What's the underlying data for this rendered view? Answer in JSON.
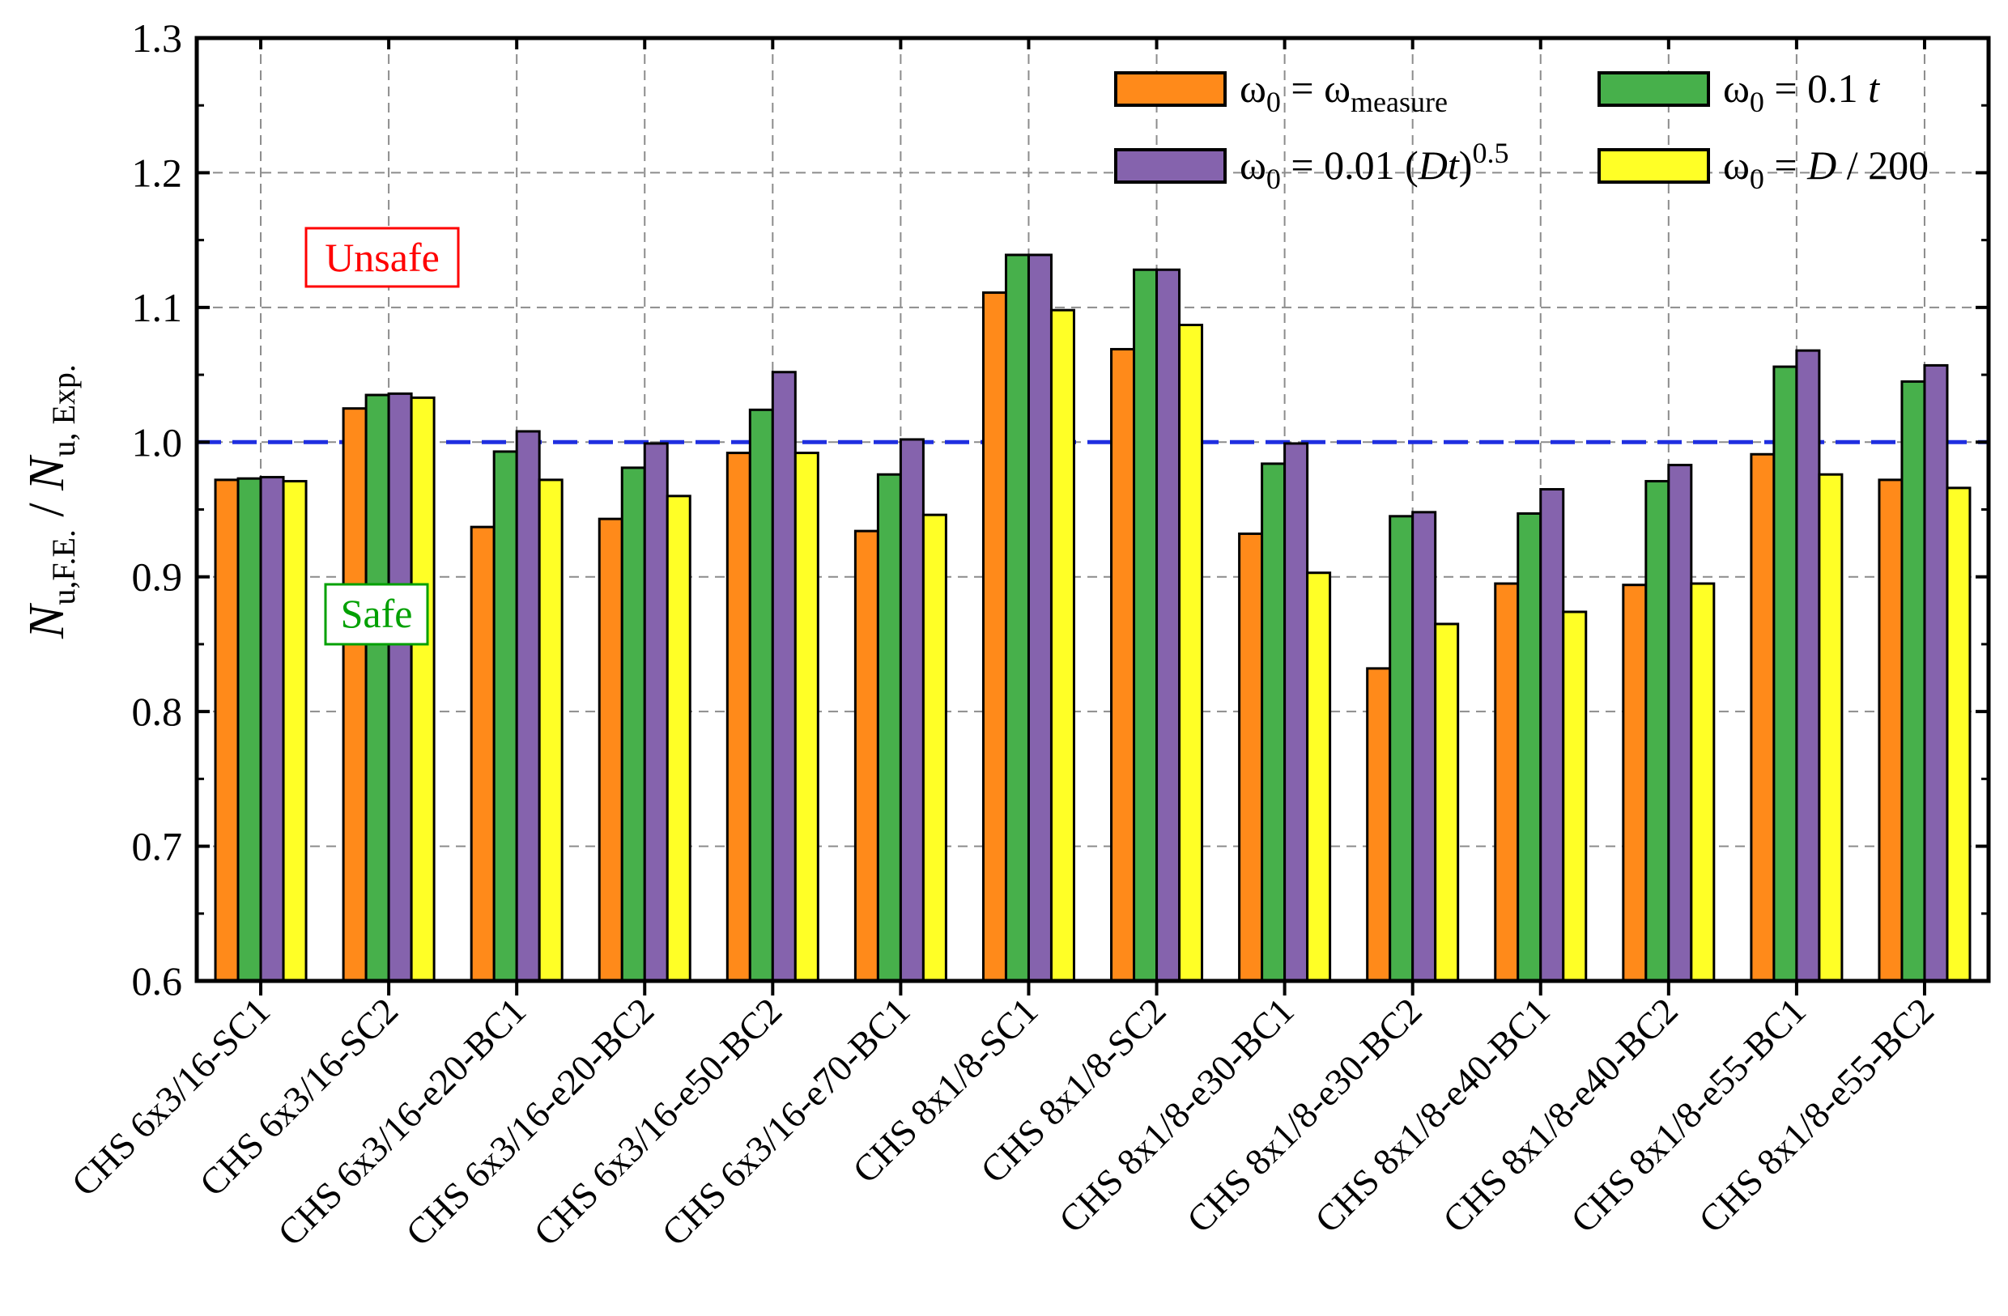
{
  "chart_data": {
    "type": "bar",
    "title": "",
    "xlabel": "",
    "ylabel": {
      "n1": "N",
      "sub1": "u,F.E.",
      "slash": " / ",
      "n2": "N",
      "sub2": "u, Exp."
    },
    "ylim": [
      0.6,
      1.3
    ],
    "yticks": [
      "0.6",
      "0.7",
      "0.8",
      "0.9",
      "1.0",
      "1.1",
      "1.2",
      "1.3"
    ],
    "grid": true,
    "reference_line": 1.0,
    "categories": [
      "CHS 6x3/16-SC1",
      "CHS 6x3/16-SC2",
      "CHS 6x3/16-e20-BC1",
      "CHS 6x3/16-e20-BC2",
      "CHS 6x3/16-e50-BC2",
      "CHS 6x3/16-e70-BC1",
      "CHS 8x1/8-SC1",
      "CHS 8x1/8-SC2",
      "CHS 8x1/8-e30-BC1",
      "CHS 8x1/8-e30-BC2",
      "CHS 8x1/8-e40-BC1",
      "CHS 8x1/8-e40-BC2",
      "CHS 8x1/8-e55-BC1",
      "CHS 8x1/8-e55-BC2"
    ],
    "series": [
      {
        "name": "ω0 = ωmeasure",
        "color": "#ff8a1a",
        "values": [
          0.972,
          1.025,
          0.937,
          0.943,
          0.992,
          0.934,
          1.111,
          1.069,
          0.932,
          0.832,
          0.895,
          0.894,
          0.991,
          0.972
        ]
      },
      {
        "name": "ω0 = 0.1 t",
        "color": "#47b04b",
        "values": [
          0.973,
          1.035,
          0.993,
          0.981,
          1.024,
          0.976,
          1.139,
          1.128,
          0.984,
          0.945,
          0.947,
          0.971,
          1.056,
          1.045
        ]
      },
      {
        "name": "ω0 = 0.01 (Dt)^0.5",
        "color": "#8563ad",
        "values": [
          0.974,
          1.036,
          1.008,
          0.999,
          1.052,
          1.002,
          1.139,
          1.128,
          0.999,
          0.948,
          0.965,
          0.983,
          1.068,
          1.057
        ]
      },
      {
        "name": "ω0 = D / 200",
        "color": "#ffff26",
        "values": [
          0.971,
          1.033,
          0.972,
          0.96,
          0.992,
          0.946,
          1.098,
          1.087,
          0.903,
          0.865,
          0.874,
          0.895,
          0.976,
          0.966
        ]
      }
    ],
    "legend": {
      "placement": "top-right",
      "entries": [
        {
          "w": "ω",
          "wsub": "0",
          "eq": " = ",
          "rest": [
            {
              "t": "ω",
              "style": "normal"
            },
            {
              "t": "measure",
              "style": "sub"
            }
          ]
        },
        {
          "w": "ω",
          "wsub": "0",
          "eq": " = ",
          "rest": [
            {
              "t": "0.1 ",
              "style": "normal"
            },
            {
              "t": "t",
              "style": "italic"
            }
          ]
        },
        {
          "w": "ω",
          "wsub": "0",
          "eq": " = ",
          "rest": [
            {
              "t": "0.01 (",
              "style": "normal"
            },
            {
              "t": "Dt",
              "style": "italic"
            },
            {
              "t": ")",
              "style": "normal"
            },
            {
              "t": "0.5",
              "style": "sup"
            }
          ]
        },
        {
          "w": "ω",
          "wsub": "0",
          "eq": " = ",
          "rest": [
            {
              "t": "D",
              "style": "italic"
            },
            {
              "t": " / 200",
              "style": "normal"
            }
          ]
        }
      ]
    },
    "annotations": [
      {
        "text": "Unsafe",
        "color": "#ff0000"
      },
      {
        "text": "Safe",
        "color": "#00a000"
      }
    ]
  }
}
